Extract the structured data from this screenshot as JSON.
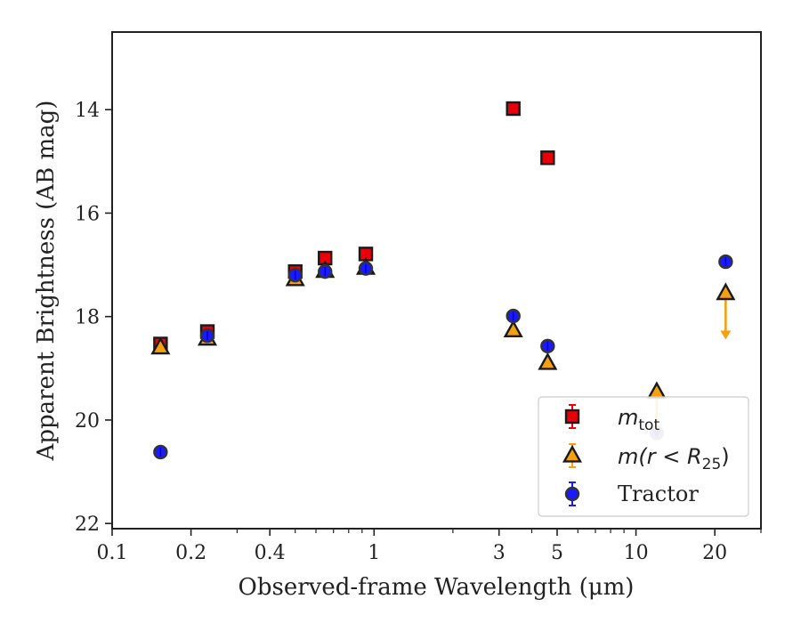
{
  "chart_data": {
    "type": "scatter",
    "title": "",
    "xlabel": "Observed-frame Wavelength (μm)",
    "ylabel": "Apparent Brightness (AB mag)",
    "x_scale": "log",
    "xlim": [
      0.1,
      30
    ],
    "ylim": [
      22.1,
      12.5
    ],
    "y_inverted": true,
    "grid": false,
    "legend_position": "bottom-right",
    "x_ticks": [
      {
        "value": 0.1,
        "label": "0.1"
      },
      {
        "value": 0.2,
        "label": "0.2"
      },
      {
        "value": 0.4,
        "label": "0.4"
      },
      {
        "value": 1,
        "label": "1"
      },
      {
        "value": 3,
        "label": "3"
      },
      {
        "value": 5,
        "label": "5"
      },
      {
        "value": 10,
        "label": "10"
      },
      {
        "value": 20,
        "label": "20"
      }
    ],
    "y_ticks": [
      {
        "value": 14,
        "label": "14"
      },
      {
        "value": 16,
        "label": "16"
      },
      {
        "value": 18,
        "label": "18"
      },
      {
        "value": 20,
        "label": "20"
      },
      {
        "value": 22,
        "label": "22"
      }
    ],
    "series": [
      {
        "name": "m_tot",
        "legend_main": "m",
        "legend_sub": "tot",
        "marker": "square",
        "color": "#e8000b",
        "points": [
          {
            "x": 0.153,
            "y": 18.53
          },
          {
            "x": 0.231,
            "y": 18.29
          },
          {
            "x": 0.5,
            "y": 17.13
          },
          {
            "x": 0.65,
            "y": 16.87
          },
          {
            "x": 0.93,
            "y": 16.79
          },
          {
            "x": 3.4,
            "y": 13.98
          },
          {
            "x": 4.6,
            "y": 14.93
          }
        ]
      },
      {
        "name": "m(r < R25)",
        "legend_main": "m(r < R",
        "legend_sub": "25",
        "legend_close": ")",
        "marker": "triangle",
        "color": "#f5a00f",
        "points": [
          {
            "x": 0.153,
            "y": 18.6
          },
          {
            "x": 0.231,
            "y": 18.43
          },
          {
            "x": 0.5,
            "y": 17.28
          },
          {
            "x": 0.65,
            "y": 17.12
          },
          {
            "x": 0.93,
            "y": 17.06
          },
          {
            "x": 3.4,
            "y": 18.27
          },
          {
            "x": 4.6,
            "y": 18.9
          },
          {
            "x": 12,
            "y": 19.46,
            "upper_limit": true
          },
          {
            "x": 22,
            "y": 17.55,
            "upper_limit": true
          }
        ]
      },
      {
        "name": "Tractor",
        "marker": "circle",
        "color": "#1a1aff",
        "points": [
          {
            "x": 0.153,
            "y": 20.62
          },
          {
            "x": 0.231,
            "y": 18.37
          },
          {
            "x": 0.5,
            "y": 17.2
          },
          {
            "x": 0.65,
            "y": 17.13
          },
          {
            "x": 0.93,
            "y": 17.07
          },
          {
            "x": 3.4,
            "y": 17.99
          },
          {
            "x": 4.6,
            "y": 18.57
          },
          {
            "x": 12,
            "y": 20.25
          },
          {
            "x": 22,
            "y": 16.94
          }
        ]
      }
    ]
  }
}
